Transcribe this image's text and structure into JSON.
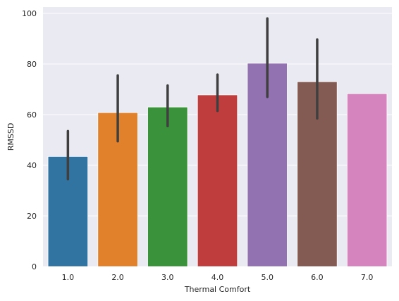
{
  "chart_data": {
    "type": "bar",
    "title": "",
    "xlabel": "Thermal Comfort",
    "ylabel": "RMSSD",
    "categories": [
      "1.0",
      "2.0",
      "3.0",
      "4.0",
      "5.0",
      "6.0",
      "7.0"
    ],
    "values": [
      43.5,
      60.8,
      63.0,
      67.8,
      80.3,
      73.0,
      68.3
    ],
    "error_low": [
      34.5,
      49.5,
      55.5,
      61.5,
      67.0,
      58.5,
      null
    ],
    "error_high": [
      53.5,
      75.5,
      71.5,
      75.8,
      98.0,
      89.7,
      null
    ],
    "colors": [
      "#3274a1",
      "#e1812c",
      "#3a923a",
      "#c03d3e",
      "#9372b2",
      "#845b53",
      "#d684bd"
    ],
    "errorbar_color": "#3f3f3f",
    "ylim": [
      0,
      102.5
    ],
    "yticks": [
      0,
      20,
      40,
      60,
      80,
      100
    ],
    "grid": true,
    "background": "#eaeaf2"
  }
}
